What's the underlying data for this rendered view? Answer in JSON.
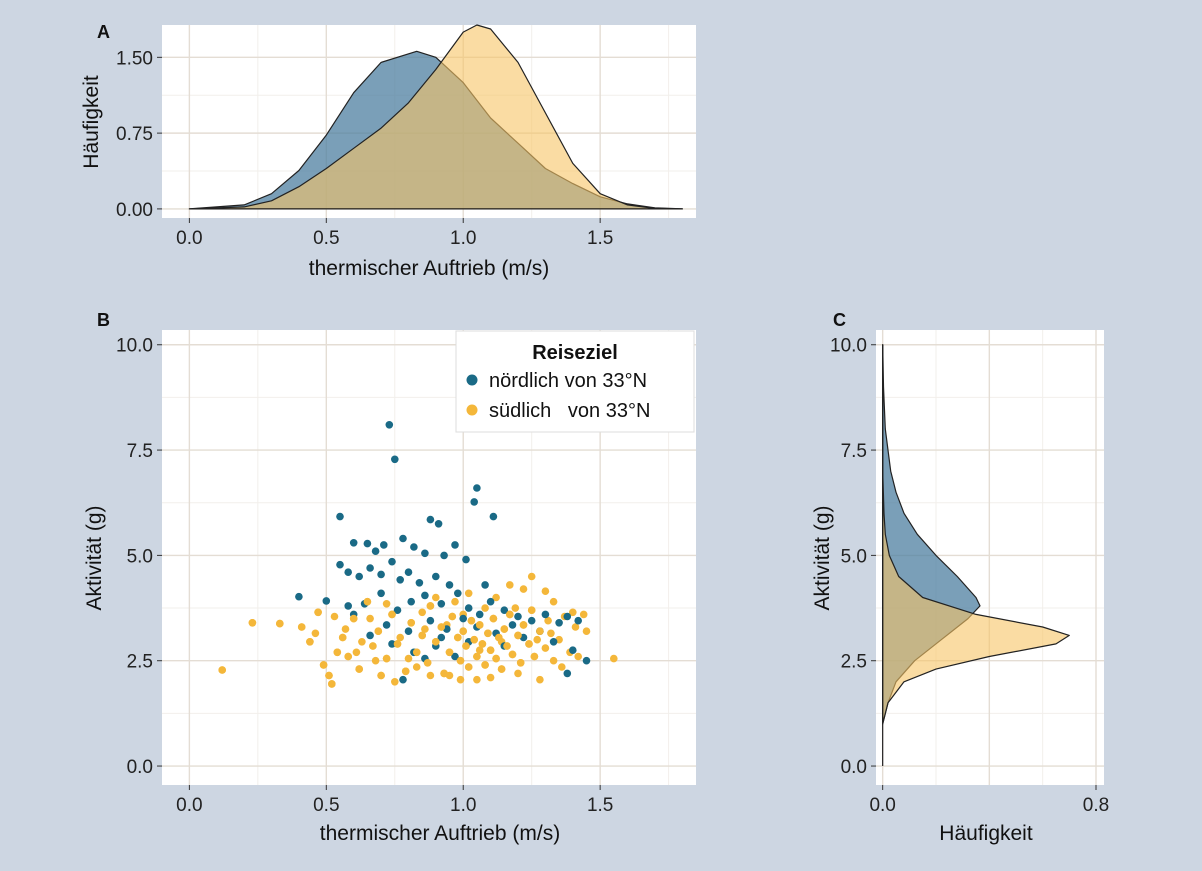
{
  "chart_data": [
    {
      "panel": "A",
      "type": "area",
      "xlabel": "thermischer Auftrieb (m/s)",
      "ylabel": "Häufigkeit",
      "xlim": [
        -0.1,
        1.85
      ],
      "ylim": [
        -0.09,
        1.82
      ],
      "xticks": [
        "0.0",
        "0.5",
        "1.0",
        "1.5"
      ],
      "yticks": [
        "0.00",
        "0.75",
        "1.50"
      ],
      "grid": true,
      "series": [
        {
          "name": "nördlich von 33°N",
          "color": "#4d7fa0",
          "x": [
            0.0,
            0.2,
            0.3,
            0.4,
            0.5,
            0.6,
            0.7,
            0.83,
            0.9,
            1.0,
            1.1,
            1.2,
            1.3,
            1.4,
            1.5,
            1.6,
            1.7,
            1.8
          ],
          "y": [
            0.0,
            0.04,
            0.15,
            0.38,
            0.73,
            1.15,
            1.45,
            1.56,
            1.5,
            1.25,
            0.9,
            0.65,
            0.4,
            0.25,
            0.12,
            0.05,
            0.01,
            0.0
          ]
        },
        {
          "name": "südlich von 33°N",
          "color": "#f6c466",
          "x": [
            0.0,
            0.2,
            0.3,
            0.4,
            0.5,
            0.6,
            0.7,
            0.8,
            0.9,
            1.0,
            1.05,
            1.1,
            1.2,
            1.3,
            1.4,
            1.5,
            1.6,
            1.7,
            1.8
          ],
          "y": [
            0.0,
            0.02,
            0.08,
            0.22,
            0.4,
            0.6,
            0.8,
            1.05,
            1.38,
            1.75,
            1.82,
            1.78,
            1.45,
            0.95,
            0.45,
            0.15,
            0.04,
            0.005,
            0.0
          ]
        }
      ]
    },
    {
      "panel": "B",
      "type": "scatter",
      "xlabel": "thermischer Auftrieb (m/s)",
      "ylabel": "Aktivität (g)",
      "xlim": [
        -0.1,
        1.85
      ],
      "ylim": [
        -0.45,
        10.35
      ],
      "xticks": [
        "0.0",
        "0.5",
        "1.0",
        "1.5"
      ],
      "yticks": [
        "0.0",
        "2.5",
        "5.0",
        "7.5",
        "10.0"
      ],
      "grid": true,
      "legend": {
        "title": "Reiseziel",
        "position": "top-right",
        "items": [
          "nördlich von 33°N",
          "südlich   von 33°N"
        ]
      },
      "series": [
        {
          "name": "nördlich von 33°N",
          "color": "#1a6a86",
          "points": [
            [
              0.73,
              8.1
            ],
            [
              0.75,
              7.28
            ],
            [
              1.05,
              6.6
            ],
            [
              1.04,
              6.27
            ],
            [
              1.11,
              5.92
            ],
            [
              0.55,
              5.92
            ],
            [
              0.88,
              5.85
            ],
            [
              0.91,
              5.75
            ],
            [
              0.6,
              5.3
            ],
            [
              0.65,
              5.28
            ],
            [
              0.68,
              5.1
            ],
            [
              0.78,
              5.4
            ],
            [
              0.82,
              5.2
            ],
            [
              0.71,
              5.25
            ],
            [
              0.86,
              5.05
            ],
            [
              0.93,
              5.0
            ],
            [
              0.97,
              5.25
            ],
            [
              1.01,
              4.9
            ],
            [
              0.55,
              4.78
            ],
            [
              0.58,
              4.6
            ],
            [
              0.62,
              4.5
            ],
            [
              0.66,
              4.7
            ],
            [
              0.7,
              4.55
            ],
            [
              0.74,
              4.85
            ],
            [
              0.77,
              4.42
            ],
            [
              0.8,
              4.6
            ],
            [
              0.84,
              4.35
            ],
            [
              0.9,
              4.5
            ],
            [
              0.95,
              4.3
            ],
            [
              1.08,
              4.3
            ],
            [
              0.4,
              4.02
            ],
            [
              0.5,
              3.92
            ],
            [
              0.58,
              3.8
            ],
            [
              0.64,
              3.85
            ],
            [
              0.7,
              4.1
            ],
            [
              0.76,
              3.7
            ],
            [
              0.81,
              3.9
            ],
            [
              0.86,
              4.05
            ],
            [
              0.92,
              3.85
            ],
            [
              0.98,
              4.1
            ],
            [
              1.02,
              3.75
            ],
            [
              1.06,
              3.6
            ],
            [
              1.1,
              3.9
            ],
            [
              1.15,
              3.7
            ],
            [
              1.2,
              3.55
            ],
            [
              1.25,
              3.45
            ],
            [
              1.3,
              3.6
            ],
            [
              1.35,
              3.4
            ],
            [
              1.38,
              3.55
            ],
            [
              1.42,
              3.45
            ],
            [
              0.6,
              3.6
            ],
            [
              0.72,
              3.35
            ],
            [
              0.8,
              3.2
            ],
            [
              0.88,
              3.45
            ],
            [
              0.94,
              3.25
            ],
            [
              1.0,
              3.5
            ],
            [
              1.05,
              3.3
            ],
            [
              1.12,
              3.15
            ],
            [
              1.18,
              3.35
            ],
            [
              1.22,
              3.05
            ],
            [
              1.28,
              3.2
            ],
            [
              1.33,
              2.95
            ],
            [
              1.4,
              2.75
            ],
            [
              1.45,
              2.5
            ],
            [
              1.38,
              2.2
            ],
            [
              0.78,
              2.05
            ],
            [
              0.82,
              2.7
            ],
            [
              0.9,
              2.85
            ],
            [
              0.97,
              2.6
            ],
            [
              1.02,
              2.95
            ],
            [
              1.15,
              2.85
            ],
            [
              0.86,
              2.55
            ],
            [
              0.66,
              3.1
            ],
            [
              0.74,
              2.9
            ],
            [
              0.92,
              3.05
            ]
          ]
        },
        {
          "name": "südlich von 33°N",
          "color": "#f4b73a",
          "points": [
            [
              0.12,
              2.28
            ],
            [
              0.23,
              3.4
            ],
            [
              0.33,
              3.38
            ],
            [
              0.41,
              3.3
            ],
            [
              0.44,
              2.95
            ],
            [
              0.47,
              3.65
            ],
            [
              0.49,
              2.4
            ],
            [
              0.51,
              2.15
            ],
            [
              0.52,
              1.95
            ],
            [
              0.54,
              2.7
            ],
            [
              0.56,
              3.05
            ],
            [
              0.58,
              2.6
            ],
            [
              0.6,
              3.5
            ],
            [
              0.62,
              2.3
            ],
            [
              0.65,
              3.9
            ],
            [
              0.67,
              2.85
            ],
            [
              0.69,
              3.2
            ],
            [
              0.7,
              2.15
            ],
            [
              0.72,
              2.55
            ],
            [
              0.74,
              3.6
            ],
            [
              0.76,
              2.9
            ],
            [
              0.79,
              2.25
            ],
            [
              0.81,
              3.4
            ],
            [
              0.83,
              2.7
            ],
            [
              0.85,
              3.1
            ],
            [
              0.87,
              2.45
            ],
            [
              0.88,
              3.8
            ],
            [
              0.9,
              2.95
            ],
            [
              0.92,
              3.3
            ],
            [
              0.93,
              2.2
            ],
            [
              0.95,
              2.7
            ],
            [
              0.96,
              3.55
            ],
            [
              0.98,
              3.05
            ],
            [
              0.99,
              2.5
            ],
            [
              1.0,
              3.2
            ],
            [
              1.01,
              2.85
            ],
            [
              1.02,
              2.35
            ],
            [
              1.03,
              3.45
            ],
            [
              1.04,
              3.0
            ],
            [
              1.05,
              2.6
            ],
            [
              1.06,
              3.35
            ],
            [
              1.07,
              2.9
            ],
            [
              1.08,
              2.4
            ],
            [
              1.09,
              3.15
            ],
            [
              1.1,
              2.75
            ],
            [
              1.11,
              3.5
            ],
            [
              1.12,
              2.55
            ],
            [
              1.13,
              3.05
            ],
            [
              1.14,
              2.3
            ],
            [
              1.15,
              3.25
            ],
            [
              1.16,
              2.85
            ],
            [
              1.17,
              3.6
            ],
            [
              1.18,
              2.65
            ],
            [
              1.2,
              3.1
            ],
            [
              1.21,
              2.45
            ],
            [
              1.22,
              3.35
            ],
            [
              1.24,
              2.9
            ],
            [
              1.25,
              3.7
            ],
            [
              1.26,
              2.6
            ],
            [
              1.28,
              3.2
            ],
            [
              1.3,
              2.8
            ],
            [
              1.31,
              3.45
            ],
            [
              1.33,
              2.5
            ],
            [
              1.35,
              3.0
            ],
            [
              1.37,
              3.55
            ],
            [
              1.39,
              2.7
            ],
            [
              1.41,
              3.3
            ],
            [
              1.44,
              3.6
            ],
            [
              1.55,
              2.55
            ],
            [
              0.97,
              3.9
            ],
            [
              1.02,
              4.1
            ],
            [
              1.08,
              3.75
            ],
            [
              1.12,
              4.0
            ],
            [
              0.9,
              4.0
            ],
            [
              0.85,
              3.65
            ],
            [
              1.17,
              4.3
            ],
            [
              1.25,
              4.5
            ],
            [
              1.22,
              4.2
            ],
            [
              1.3,
              4.15
            ],
            [
              1.33,
              3.9
            ],
            [
              0.95,
              2.15
            ],
            [
              1.05,
              2.05
            ],
            [
              1.1,
              2.1
            ],
            [
              1.2,
              2.2
            ],
            [
              1.28,
              2.05
            ],
            [
              0.75,
              2.0
            ],
            [
              0.68,
              2.5
            ],
            [
              0.63,
              2.95
            ],
            [
              0.57,
              3.25
            ],
            [
              0.53,
              3.55
            ],
            [
              0.46,
              3.15
            ],
            [
              0.88,
              2.15
            ],
            [
              1.36,
              2.35
            ],
            [
              1.42,
              2.6
            ],
            [
              0.94,
              3.35
            ],
            [
              1.0,
              3.6
            ],
            [
              1.06,
              2.75
            ],
            [
              0.8,
              2.55
            ],
            [
              0.86,
              3.25
            ],
            [
              0.99,
              2.05
            ],
            [
              1.14,
              2.95
            ],
            [
              1.19,
              3.75
            ],
            [
              0.72,
              3.85
            ],
            [
              0.66,
              3.5
            ],
            [
              0.61,
              2.7
            ],
            [
              0.77,
              3.05
            ],
            [
              0.83,
              2.35
            ],
            [
              1.27,
              3.0
            ],
            [
              1.32,
              3.15
            ],
            [
              1.4,
              3.65
            ],
            [
              1.45,
              3.2
            ]
          ]
        }
      ]
    },
    {
      "panel": "C",
      "type": "area",
      "xlabel": "Häufigkeit",
      "ylabel": "Aktivität (g)",
      "xlim": [
        -0.025,
        0.83
      ],
      "ylim": [
        -0.45,
        10.35
      ],
      "xticks": [
        "0.0",
        "0.8"
      ],
      "yticks": [
        "0.0",
        "2.5",
        "5.0",
        "7.5",
        "10.0"
      ],
      "grid": true,
      "series": [
        {
          "name": "nördlich von 33°N",
          "color": "#4d7fa0",
          "y": [
            1.0,
            1.5,
            2.0,
            2.5,
            3.0,
            3.5,
            3.8,
            4.0,
            4.5,
            5.0,
            5.5,
            6.0,
            6.5,
            7.0,
            7.5,
            8.0,
            9.0,
            10.0
          ],
          "x": [
            0.0,
            0.02,
            0.05,
            0.12,
            0.22,
            0.32,
            0.365,
            0.35,
            0.28,
            0.2,
            0.13,
            0.08,
            0.05,
            0.03,
            0.02,
            0.01,
            0.003,
            0.0
          ]
        },
        {
          "name": "südlich von 33°N",
          "color": "#f6c466",
          "y": [
            1.0,
            1.5,
            2.0,
            2.3,
            2.6,
            2.9,
            3.1,
            3.3,
            3.6,
            4.0,
            4.5,
            5.0,
            5.5,
            6.0,
            7.0,
            10.0
          ],
          "x": [
            0.0,
            0.02,
            0.08,
            0.2,
            0.4,
            0.65,
            0.7,
            0.6,
            0.35,
            0.15,
            0.06,
            0.025,
            0.01,
            0.005,
            0.0,
            0.0
          ]
        }
      ]
    }
  ]
}
